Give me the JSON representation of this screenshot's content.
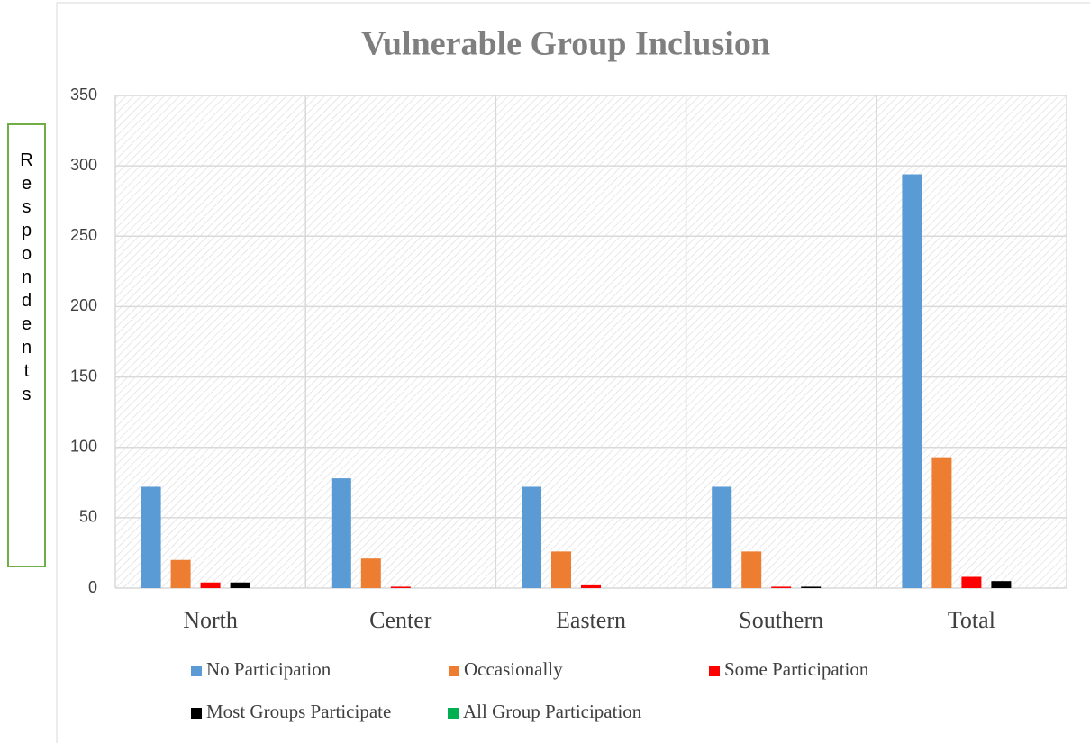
{
  "chart_data": {
    "type": "bar",
    "title": "Vulnerable Group Inclusion",
    "y_label": "Respondents",
    "categories": [
      "North",
      "Center",
      "Eastern",
      "Southern",
      "Total"
    ],
    "series": [
      {
        "name": "No Participation",
        "color": "#5b9bd5",
        "values": [
          72,
          78,
          72,
          72,
          294
        ]
      },
      {
        "name": "Occasionally",
        "color": "#ed7d31",
        "values": [
          20,
          21,
          26,
          26,
          93
        ]
      },
      {
        "name": "Some Participation",
        "color": "#ff0000",
        "values": [
          4,
          1,
          2,
          1,
          8
        ]
      },
      {
        "name": "Most Groups Participate",
        "color": "#000000",
        "values": [
          4,
          0,
          0,
          1,
          5
        ]
      },
      {
        "name": "All Group Participation",
        "color": "#00b050",
        "values": [
          0,
          0,
          0,
          0,
          0
        ]
      }
    ],
    "ylim": [
      0,
      350
    ],
    "yticks": [
      0,
      50,
      100,
      150,
      200,
      250,
      300,
      350
    ],
    "grid": true
  }
}
